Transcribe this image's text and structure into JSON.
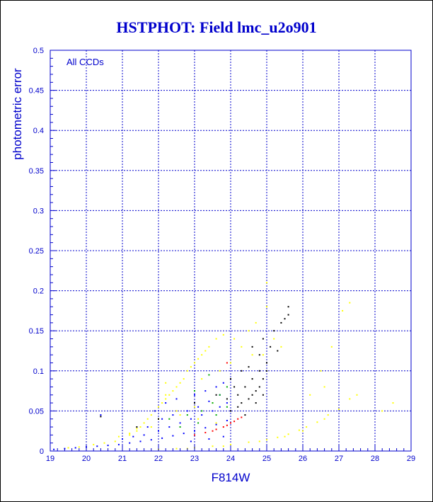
{
  "chart_data": {
    "type": "scatter",
    "title": "HSTPHOT: Field lmc_u2o901",
    "xlabel": "F814W",
    "ylabel": "photometric error",
    "annotation": "All CCDs",
    "xlim": [
      19,
      29
    ],
    "ylim": [
      0,
      0.5
    ],
    "x_ticks": [
      "19",
      "20",
      "21",
      "22",
      "23",
      "24",
      "25",
      "26",
      "27",
      "28",
      "29"
    ],
    "y_ticks": [
      "0",
      "0.05",
      "0.1",
      "0.15",
      "0.2",
      "0.25",
      "0.3",
      "0.35",
      "0.4",
      "0.45",
      "0.5"
    ],
    "grid": true,
    "series": [
      {
        "color": "#ffff00",
        "points": [
          [
            19.5,
            0.004
          ],
          [
            19.8,
            0.005
          ],
          [
            20.2,
            0.008
          ],
          [
            20.5,
            0.01
          ],
          [
            20.8,
            0.012
          ],
          [
            21.0,
            0.015
          ],
          [
            21.2,
            0.02
          ],
          [
            21.4,
            0.025
          ],
          [
            21.5,
            0.03
          ],
          [
            21.6,
            0.035
          ],
          [
            21.7,
            0.04
          ],
          [
            21.8,
            0.045
          ],
          [
            21.9,
            0.05
          ],
          [
            22.0,
            0.055
          ],
          [
            22.1,
            0.06
          ],
          [
            22.2,
            0.065
          ],
          [
            22.3,
            0.07
          ],
          [
            22.4,
            0.075
          ],
          [
            22.5,
            0.08
          ],
          [
            22.6,
            0.085
          ],
          [
            22.7,
            0.09
          ],
          [
            22.8,
            0.1
          ],
          [
            22.9,
            0.105
          ],
          [
            23.0,
            0.11
          ],
          [
            23.1,
            0.115
          ],
          [
            23.2,
            0.12
          ],
          [
            23.3,
            0.125
          ],
          [
            23.4,
            0.13
          ],
          [
            23.6,
            0.14
          ],
          [
            23.8,
            0.145
          ],
          [
            24.5,
            0.15
          ],
          [
            24.7,
            0.16
          ],
          [
            25.0,
            0.18
          ],
          [
            25.0,
            0.21
          ],
          [
            27.3,
            0.185
          ],
          [
            27.1,
            0.175
          ],
          [
            26.8,
            0.13
          ],
          [
            26.5,
            0.1
          ],
          [
            26.6,
            0.08
          ],
          [
            26.2,
            0.07
          ],
          [
            25.4,
            0.13
          ],
          [
            25.2,
            0.14
          ],
          [
            24.9,
            0.12
          ],
          [
            24.6,
            0.12
          ],
          [
            22.2,
            0.085
          ],
          [
            21.4,
            0.028
          ],
          [
            20.9,
            0.018
          ],
          [
            21.2,
            0.022
          ],
          [
            22.0,
            0.04
          ],
          [
            22.5,
            0.05
          ],
          [
            23.0,
            0.055
          ],
          [
            23.5,
            0.06
          ],
          [
            22.2,
            0.07
          ],
          [
            23.2,
            0.09
          ],
          [
            23.7,
            0.1
          ],
          [
            24.0,
            0.11
          ],
          [
            24.3,
            0.13
          ],
          [
            24.1,
            0.14
          ],
          [
            21.8,
            0.03
          ],
          [
            22.6,
            0.045
          ],
          [
            23.1,
            0.04
          ],
          [
            23.6,
            0.035
          ],
          [
            22.0,
            0.002
          ],
          [
            22.5,
            0.003
          ],
          [
            23.0,
            0.004
          ],
          [
            23.5,
            0.006
          ],
          [
            24.0,
            0.008
          ],
          [
            24.5,
            0.011
          ],
          [
            25.0,
            0.014
          ],
          [
            25.3,
            0.017
          ],
          [
            25.6,
            0.021
          ],
          [
            25.9,
            0.026
          ],
          [
            26.1,
            0.03
          ],
          [
            26.4,
            0.036
          ],
          [
            26.7,
            0.045
          ],
          [
            27.0,
            0.052
          ],
          [
            27.3,
            0.065
          ],
          [
            27.5,
            0.07
          ],
          [
            28.2,
            0.05
          ],
          [
            28.5,
            0.06
          ],
          [
            22.8,
            0.003
          ],
          [
            23.8,
            0.006
          ],
          [
            24.8,
            0.012
          ],
          [
            25.5,
            0.018
          ],
          [
            26.0,
            0.025
          ],
          [
            26.6,
            0.04
          ]
        ]
      },
      {
        "color": "#0000ff",
        "points": [
          [
            19.1,
            0.002
          ],
          [
            19.4,
            0.003
          ],
          [
            19.7,
            0.004
          ],
          [
            20.0,
            0.005
          ],
          [
            20.3,
            0.006
          ],
          [
            20.6,
            0.007
          ],
          [
            20.9,
            0.008
          ],
          [
            21.2,
            0.01
          ],
          [
            21.5,
            0.012
          ],
          [
            21.8,
            0.014
          ],
          [
            22.1,
            0.016
          ],
          [
            22.4,
            0.019
          ],
          [
            22.7,
            0.022
          ],
          [
            23.0,
            0.025
          ],
          [
            23.3,
            0.029
          ],
          [
            23.6,
            0.033
          ],
          [
            23.9,
            0.038
          ],
          [
            21.6,
            0.02
          ],
          [
            22.0,
            0.025
          ],
          [
            22.3,
            0.03
          ],
          [
            22.6,
            0.035
          ],
          [
            22.9,
            0.04
          ],
          [
            23.2,
            0.045
          ],
          [
            23.5,
            0.05
          ],
          [
            23.7,
            0.055
          ],
          [
            23.9,
            0.06
          ],
          [
            22.1,
            0.04
          ],
          [
            22.4,
            0.045
          ],
          [
            22.8,
            0.05
          ],
          [
            23.1,
            0.055
          ],
          [
            23.4,
            0.062
          ],
          [
            23.7,
            0.07
          ],
          [
            21.9,
            0.05
          ],
          [
            20.4,
            0.045
          ],
          [
            21.0,
            0.015
          ],
          [
            21.3,
            0.018
          ],
          [
            21.7,
            0.03
          ],
          [
            22.2,
            0.06
          ],
          [
            22.5,
            0.065
          ],
          [
            23.0,
            0.07
          ],
          [
            23.3,
            0.075
          ],
          [
            23.6,
            0.08
          ],
          [
            23.8,
            0.085
          ],
          [
            22.9,
            0.012
          ],
          [
            23.4,
            0.015
          ],
          [
            23.8,
            0.018
          ]
        ]
      },
      {
        "color": "#00aa00",
        "points": [
          [
            22.3,
            0.04
          ],
          [
            22.8,
            0.045
          ],
          [
            23.2,
            0.05
          ],
          [
            23.5,
            0.06
          ],
          [
            23.7,
            0.07
          ],
          [
            23.9,
            0.08
          ],
          [
            23.0,
            0.075
          ],
          [
            23.4,
            0.095
          ],
          [
            22.6,
            0.03
          ],
          [
            23.1,
            0.035
          ],
          [
            23.6,
            0.045
          ],
          [
            23.9,
            0.055
          ]
        ]
      },
      {
        "color": "#ff0000",
        "points": [
          [
            23.0,
            0.02
          ],
          [
            23.3,
            0.023
          ],
          [
            23.6,
            0.027
          ],
          [
            23.9,
            0.032
          ],
          [
            24.1,
            0.037
          ],
          [
            24.3,
            0.042
          ],
          [
            23.8,
            0.03
          ],
          [
            24.0,
            0.035
          ],
          [
            23.9,
            0.11
          ],
          [
            23.5,
            0.025
          ],
          [
            24.2,
            0.04
          ]
        ]
      },
      {
        "color": "#000000",
        "points": [
          [
            24.0,
            0.05
          ],
          [
            24.2,
            0.055
          ],
          [
            24.3,
            0.06
          ],
          [
            24.5,
            0.065
          ],
          [
            24.6,
            0.07
          ],
          [
            24.7,
            0.075
          ],
          [
            24.8,
            0.08
          ],
          [
            24.9,
            0.09
          ],
          [
            25.0,
            0.1
          ],
          [
            25.0,
            0.11
          ],
          [
            24.4,
            0.08
          ],
          [
            24.6,
            0.09
          ],
          [
            24.8,
            0.1
          ],
          [
            24.2,
            0.07
          ],
          [
            24.1,
            0.08
          ],
          [
            24.3,
            0.1
          ],
          [
            24.5,
            0.105
          ],
          [
            24.9,
            0.14
          ],
          [
            25.1,
            0.13
          ],
          [
            25.3,
            0.125
          ],
          [
            25.2,
            0.15
          ],
          [
            25.4,
            0.16
          ],
          [
            25.6,
            0.17
          ],
          [
            25.6,
            0.18
          ],
          [
            25.5,
            0.165
          ],
          [
            24.6,
            0.13
          ],
          [
            24.8,
            0.12
          ],
          [
            23.9,
            0.065
          ],
          [
            24.0,
            0.09
          ],
          [
            24.4,
            0.045
          ],
          [
            24.7,
            0.06
          ],
          [
            24.9,
            0.07
          ],
          [
            20.4,
            0.043
          ],
          [
            21.4,
            0.03
          ],
          [
            22.0,
            0.04
          ],
          [
            23.0,
            0.06
          ],
          [
            23.6,
            0.07
          ]
        ]
      }
    ]
  }
}
